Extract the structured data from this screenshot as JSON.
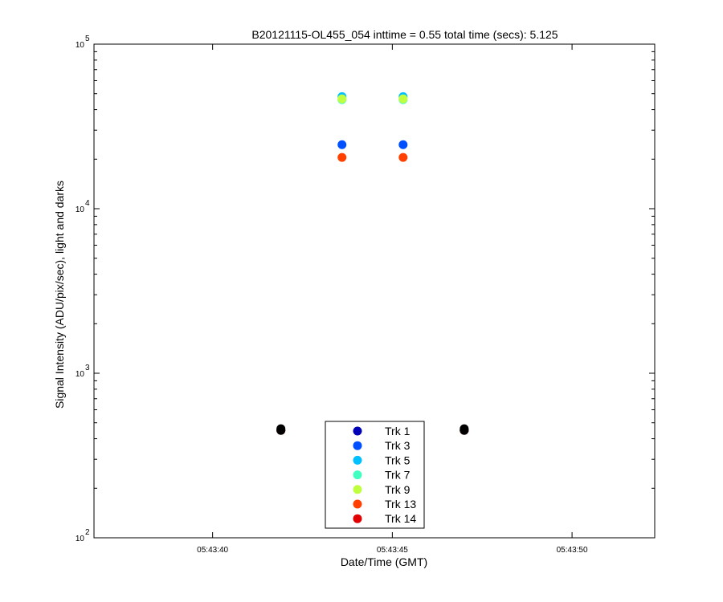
{
  "chart_data": {
    "type": "scatter",
    "title": "B20121115-OL455_054 inttime = 0.55 total time (secs): 5.125",
    "xlabel": "Date/Time (GMT)",
    "ylabel": "Signal Intensity (ADU/pix/sec), light and darks",
    "x_axis": {
      "unit": "seconds after 05:43:00",
      "range": [
        36.7,
        52.3
      ],
      "ticks": [
        {
          "value": 40,
          "label": "05:43:40"
        },
        {
          "value": 45,
          "label": "05:43:45"
        },
        {
          "value": 50,
          "label": "05:43:50"
        }
      ]
    },
    "y_axis": {
      "scale": "log",
      "range": [
        100,
        100000
      ],
      "ticks": [
        {
          "value": 100,
          "base": "10",
          "exp": "2"
        },
        {
          "value": 1000,
          "base": "10",
          "exp": "3"
        },
        {
          "value": 10000,
          "base": "10",
          "exp": "4"
        },
        {
          "value": 100000,
          "base": "10",
          "exp": "5"
        }
      ]
    },
    "grid": false,
    "legend_position": "bottom-center",
    "series": [
      {
        "name": "Trk 1",
        "color": "#0000b4",
        "points": [
          [
            41.9,
            450
          ],
          [
            43.6,
            460
          ],
          [
            45.3,
            460
          ],
          [
            47.0,
            450
          ]
        ]
      },
      {
        "name": "Trk 3",
        "color": "#0050ff",
        "points": [
          [
            41.9,
            450
          ],
          [
            43.6,
            24500
          ],
          [
            45.3,
            24500
          ],
          [
            47.0,
            450
          ]
        ]
      },
      {
        "name": "Trk 5",
        "color": "#00c0ff",
        "points": [
          [
            41.9,
            450
          ],
          [
            43.6,
            48000
          ],
          [
            45.3,
            48000
          ],
          [
            47.0,
            450
          ]
        ]
      },
      {
        "name": "Trk 7",
        "color": "#40ffc0",
        "points": [
          [
            41.9,
            450
          ],
          [
            43.6,
            46000
          ],
          [
            45.3,
            46000
          ],
          [
            47.0,
            450
          ]
        ]
      },
      {
        "name": "Trk 9",
        "color": "#c0ff40",
        "points": [
          [
            41.9,
            450
          ],
          [
            43.6,
            46500
          ],
          [
            45.3,
            46500
          ],
          [
            47.0,
            450
          ]
        ]
      },
      {
        "name": "Trk 13",
        "color": "#ff4000",
        "points": [
          [
            41.9,
            450
          ],
          [
            43.6,
            20500
          ],
          [
            45.3,
            20500
          ],
          [
            47.0,
            450
          ]
        ]
      },
      {
        "name": "Trk 14",
        "color": "#e00000",
        "points": [
          [
            41.9,
            450
          ],
          [
            43.6,
            470
          ],
          [
            45.3,
            470
          ],
          [
            47.0,
            450
          ]
        ]
      }
    ],
    "dark_points": {
      "color": "#000000",
      "points": [
        [
          41.9,
          450
        ],
        [
          41.9,
          460
        ],
        [
          47.0,
          450
        ],
        [
          47.0,
          460
        ]
      ]
    }
  }
}
